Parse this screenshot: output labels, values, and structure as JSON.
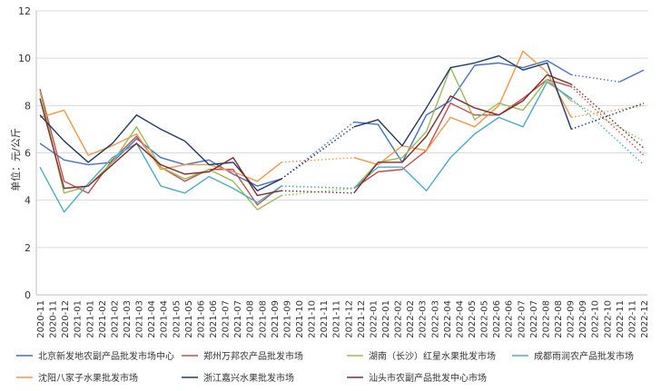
{
  "chart_data": {
    "type": "line",
    "ylabel": "单位：元/公斤",
    "ylim": [
      0,
      12
    ],
    "yticks": [
      0,
      2,
      4,
      6,
      8,
      10,
      12
    ],
    "x": [
      "2020-11",
      "2020-12",
      "2021-01",
      "2021-02",
      "2021-03",
      "2021-04",
      "2021-05",
      "2021-06",
      "2021-07",
      "2021-08",
      "2021-09",
      "2021-10",
      "2021-11",
      "2021-12",
      "2022-01",
      "2022-02",
      "2022-03",
      "2022-04",
      "2022-05",
      "2022-06",
      "2022-07",
      "2022-08",
      "2022-09",
      "2022-10",
      "2022-11",
      "2022-12"
    ],
    "xtick_labels": [
      "2020-11",
      "2020-11",
      "2020-12",
      "2021-01",
      "2021-01",
      "2021-02",
      "2021-02",
      "2021-03",
      "2021-03",
      "2021-04",
      "2021-04",
      "2021-05",
      "2021-05",
      "2021-06",
      "2021-06",
      "2021-07",
      "2021-07",
      "2021-08",
      "2021-08",
      "2021-09",
      "2021-09",
      "2021-10",
      "2021-10",
      "2021-11",
      "2021-11",
      "2021-12",
      "2021-12",
      "2022-01",
      "2022-01",
      "2022-02",
      "2022-02",
      "2022-03",
      "2022-03",
      "2022-04",
      "2022-04",
      "2022-05",
      "2022-05",
      "2022-06",
      "2022-06",
      "2022-07",
      "2022-07",
      "2022-08",
      "2022-08",
      "2022-09",
      "2022-09",
      "2022-10",
      "2022-10",
      "2022-11",
      "2022-11",
      "2022-12"
    ],
    "legend_position": "bottom",
    "series": [
      {
        "name": "北京新发地农副产品批发市场中心",
        "color": "#4472c4",
        "values": [
          6.4,
          5.7,
          5.5,
          5.6,
          6.6,
          5.8,
          5.5,
          5.7,
          5.1,
          4.6,
          4.9,
          null,
          null,
          7.3,
          7.2,
          5.6,
          7.6,
          8.2,
          9.7,
          9.8,
          9.6,
          9.9,
          9.3,
          null,
          9.0,
          9.5
        ]
      },
      {
        "name": "郑州万邦农产品批发市场",
        "color": "#c0504d",
        "values": [
          8.7,
          4.8,
          4.3,
          5.7,
          6.7,
          5.4,
          4.8,
          5.3,
          5.3,
          3.8,
          4.6,
          null,
          null,
          4.5,
          5.2,
          5.3,
          6.1,
          8.1,
          7.6,
          7.6,
          8.3,
          9.1,
          8.8,
          null,
          null,
          5.9
        ]
      },
      {
        "name": "湖南（长沙）红星水果批发市场",
        "color": "#9bbb59",
        "values": [
          8.6,
          4.3,
          4.6,
          5.6,
          7.1,
          5.4,
          4.9,
          5.3,
          4.8,
          3.6,
          4.2,
          null,
          null,
          4.5,
          5.6,
          5.8,
          6.9,
          9.6,
          7.4,
          8.1,
          7.8,
          9.1,
          8.2,
          null,
          null,
          6.5
        ]
      },
      {
        "name": "成都雨润农产品批发市场",
        "color": "#4bacc6",
        "values": [
          5.4,
          3.5,
          4.7,
          5.8,
          6.4,
          4.6,
          4.3,
          5.0,
          4.5,
          3.9,
          4.6,
          null,
          null,
          4.5,
          5.4,
          5.4,
          4.4,
          5.8,
          6.8,
          7.5,
          7.1,
          9.0,
          8.3,
          null,
          null,
          5.5
        ]
      },
      {
        "name": "沈阳八家子水果批发市场",
        "color": "#f79646",
        "values": [
          7.5,
          7.8,
          5.9,
          6.3,
          6.8,
          5.3,
          5.5,
          5.5,
          5.2,
          4.8,
          5.6,
          null,
          null,
          5.8,
          5.5,
          6.3,
          6.1,
          7.5,
          7.1,
          8.0,
          10.3,
          9.4,
          7.5,
          null,
          null,
          8.0
        ]
      },
      {
        "name": "浙江嘉兴水果批发市场",
        "color": "#1f3864",
        "values": [
          7.6,
          6.5,
          5.6,
          6.4,
          7.6,
          7.0,
          6.5,
          5.5,
          5.6,
          4.4,
          4.9,
          null,
          null,
          7.1,
          7.4,
          6.3,
          7.9,
          9.6,
          9.8,
          10.1,
          9.5,
          9.8,
          7.0,
          null,
          null,
          8.1
        ]
      },
      {
        "name": "汕头市农副产品批发中心市场",
        "color": "#7f2b2b",
        "values": [
          8.3,
          4.5,
          4.6,
          5.5,
          6.4,
          5.5,
          5.1,
          5.2,
          5.8,
          4.2,
          4.4,
          null,
          null,
          4.3,
          5.6,
          5.6,
          6.7,
          8.4,
          7.9,
          7.6,
          8.2,
          9.3,
          8.9,
          null,
          null,
          6.2
        ]
      }
    ]
  }
}
